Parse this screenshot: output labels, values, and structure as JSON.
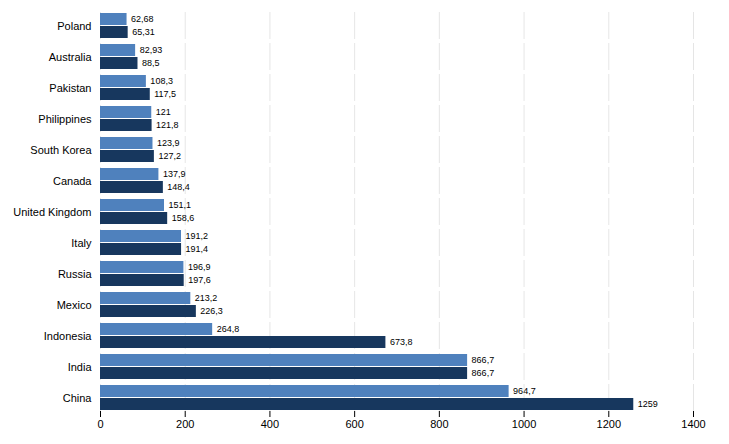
{
  "chart_data": {
    "type": "bar",
    "orientation": "horizontal",
    "categories": [
      "Poland",
      "Australia",
      "Pakistan",
      "Philippines",
      "South Korea",
      "Canada",
      "United Kingdom",
      "Italy",
      "Russia",
      "Mexico",
      "Indonesia",
      "India",
      "China"
    ],
    "series": [
      {
        "color": "#4F81BD",
        "values": [
          62.68,
          82.93,
          108.3,
          121.0,
          123.9,
          137.9,
          151.1,
          191.2,
          196.9,
          213.2,
          264.8,
          866.7,
          964.7
        ],
        "value_labels": [
          "62,68",
          "82,93",
          "108,3",
          "121",
          "123,9",
          "137,9",
          "151,1",
          "191,2",
          "196,9",
          "213,2",
          "264,8",
          "866,7",
          "964,7"
        ]
      },
      {
        "color": "#17375E",
        "values": [
          65.31,
          88.5,
          117.5,
          121.8,
          127.2,
          148.4,
          158.6,
          191.4,
          197.6,
          226.3,
          673.8,
          866.7,
          1259.0
        ],
        "value_labels": [
          "65,31",
          "88,5",
          "117,5",
          "121,8",
          "127,2",
          "148,4",
          "158,6",
          "191,4",
          "197,6",
          "226,3",
          "673,8",
          "866,7",
          "1259"
        ]
      }
    ],
    "xlim": [
      0,
      1400
    ],
    "xticks": [
      0,
      200,
      400,
      600,
      800,
      1000,
      1200,
      1400
    ],
    "grid": true,
    "data_labels": true
  }
}
